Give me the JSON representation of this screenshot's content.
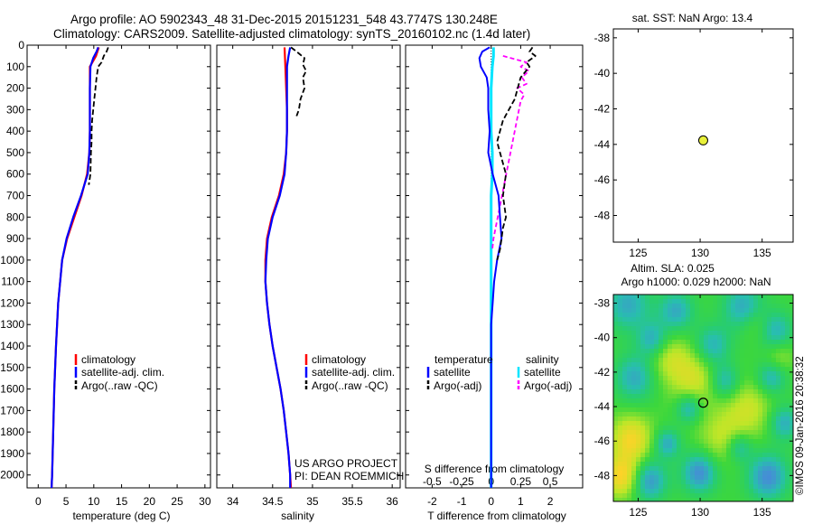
{
  "title_line1": "Argo profile: AO 5902343_48 31-Dec-2015 20151231_548 43.7747S 130.248E",
  "title_line2": "Climatology: CARS2009. Satellite-adjusted climatology: synTS_20160102.nc (1.4d later)",
  "colors": {
    "climatology": "#ff0000",
    "satellite": "#0000ff",
    "argo": "#000000",
    "salinity_satellite": "#00e5ff",
    "salinity_argo": "#ff00ff",
    "marker": "#e8f03a"
  },
  "chart_data": [
    {
      "id": "temperature",
      "type": "line",
      "xlabel": "temperature (deg C)",
      "ylabel": "",
      "xlim": [
        -2,
        31
      ],
      "ylim": [
        2060,
        0
      ],
      "xticks": [
        0,
        5,
        10,
        15,
        20,
        25,
        30
      ],
      "yticks": [
        0,
        100,
        200,
        300,
        400,
        500,
        600,
        700,
        800,
        900,
        1000,
        1100,
        1200,
        1300,
        1400,
        1500,
        1600,
        1700,
        1800,
        1900,
        2000
      ],
      "legend": [
        "climatology",
        "satellite-adj. clim.",
        "Argo(..raw -QC)"
      ],
      "series": [
        {
          "name": "climatology",
          "depth": [
            10,
            50,
            100,
            200,
            300,
            400,
            500,
            600,
            700,
            800,
            900,
            1000,
            1200,
            1400,
            1600,
            1800,
            2000,
            2060
          ],
          "values": [
            10.9,
            10.4,
            9.3,
            9.3,
            9.3,
            9.3,
            9.2,
            8.8,
            7.8,
            6.5,
            5.2,
            4.3,
            3.6,
            3.2,
            2.9,
            2.7,
            2.5,
            2.4
          ]
        },
        {
          "name": "satellite-adj. clim.",
          "depth": [
            10,
            30,
            60,
            100,
            200,
            300,
            400,
            500,
            600,
            700,
            800,
            900,
            1000,
            1200,
            1400,
            1600,
            1800,
            2000,
            2060
          ],
          "values": [
            10.8,
            10.5,
            9.9,
            9.4,
            9.3,
            9.3,
            9.3,
            9.2,
            8.9,
            7.7,
            6.3,
            5.1,
            4.3,
            3.6,
            3.2,
            2.9,
            2.7,
            2.5,
            2.4
          ]
        },
        {
          "name": "Argo(..raw -QC)",
          "depth": [
            10,
            30,
            50,
            80,
            100,
            150,
            200,
            250,
            300,
            350,
            400,
            450,
            500,
            600,
            650
          ],
          "values": [
            12.6,
            12.3,
            11.8,
            11.4,
            10.8,
            10.5,
            10.3,
            10.1,
            9.9,
            9.7,
            9.6,
            9.6,
            9.5,
            9.4,
            9.1
          ]
        }
      ]
    },
    {
      "id": "salinity",
      "type": "line",
      "xlabel": "salinity",
      "ylabel": "",
      "xlim": [
        33.8,
        36.1
      ],
      "ylim": [
        2060,
        0
      ],
      "xticks": [
        34,
        34.5,
        35,
        35.5,
        36
      ],
      "legend": [
        "climatology",
        "satellite-adj. clim.",
        "Argo(..raw -QC)"
      ],
      "note_line1": "US ARGO PROJECT",
      "note_line2": "PI: DEAN ROEMMICH",
      "series": [
        {
          "name": "climatology",
          "depth": [
            10,
            100,
            200,
            300,
            400,
            500,
            600,
            700,
            800,
            900,
            1000,
            1100,
            1200,
            1300,
            1400,
            1500,
            1600,
            1700,
            1800,
            1900,
            2000,
            2060
          ],
          "values": [
            34.65,
            34.66,
            34.67,
            34.68,
            34.68,
            34.67,
            34.64,
            34.58,
            34.49,
            34.43,
            34.41,
            34.41,
            34.43,
            34.46,
            34.5,
            34.55,
            34.6,
            34.64,
            34.67,
            34.7,
            34.72,
            34.73
          ]
        },
        {
          "name": "satellite-adj. clim.",
          "depth": [
            10,
            50,
            100,
            200,
            300,
            400,
            500,
            600,
            700,
            800,
            900,
            1000,
            1100,
            1200,
            1300,
            1400,
            1500,
            1600,
            1700,
            1800,
            1900,
            2000,
            2060
          ],
          "values": [
            34.72,
            34.7,
            34.68,
            34.68,
            34.68,
            34.68,
            34.67,
            34.65,
            34.59,
            34.5,
            34.44,
            34.42,
            34.41,
            34.43,
            34.46,
            34.5,
            34.55,
            34.6,
            34.64,
            34.67,
            34.7,
            34.72,
            34.72
          ]
        },
        {
          "name": "Argo(..raw -QC)",
          "depth": [
            10,
            30,
            60,
            90,
            120,
            150,
            200,
            250,
            300,
            330
          ],
          "values": [
            34.73,
            34.8,
            34.9,
            34.88,
            34.92,
            34.88,
            34.9,
            34.85,
            34.83,
            34.8
          ]
        }
      ]
    },
    {
      "id": "differences",
      "type": "line",
      "xlabel": "T difference from climatology",
      "xlabel_top": "S difference from climatology",
      "ylabel": "",
      "xlim": [
        -2.9,
        3.1
      ],
      "ylim": [
        2060,
        0
      ],
      "xticks_bottom": [
        -2,
        -1,
        0,
        1,
        2
      ],
      "xticks_top": [
        "-0.5",
        "-0.25",
        "0",
        "0.25",
        "0.5"
      ],
      "legend_temperature_heading": "temperature",
      "legend_salinity_heading": "salinity",
      "legend": [
        "satellite",
        "Argo(-adj)",
        "satellite",
        "Argo(-adj)"
      ],
      "series": [
        {
          "name": "temperature satellite",
          "depth": [
            10,
            30,
            60,
            100,
            150,
            200,
            300,
            400,
            500,
            600,
            700,
            800,
            900,
            1000,
            1100,
            1200,
            1300,
            1400,
            1500,
            1600,
            1700,
            1800,
            1900,
            2000,
            2060
          ],
          "values": [
            -0.05,
            -0.3,
            -0.4,
            -0.35,
            -0.15,
            -0.1,
            -0.1,
            -0.05,
            -0.1,
            0.05,
            0.25,
            0.3,
            0.35,
            0.2,
            0.1,
            0.05,
            0.0,
            0.0,
            0.0,
            0.0,
            0.0,
            0.0,
            0.0,
            0.0,
            0.0
          ]
        },
        {
          "name": "temperature Argo(-adj)",
          "depth": [
            10,
            30,
            50,
            80,
            100,
            150,
            200,
            250,
            300,
            350,
            400,
            450,
            500,
            600,
            700,
            800,
            850,
            900,
            950,
            1000
          ],
          "values": [
            1.4,
            1.3,
            1.5,
            1.2,
            1.3,
            1.0,
            0.9,
            0.8,
            0.6,
            0.4,
            0.3,
            0.2,
            0.3,
            0.5,
            0.4,
            0.5,
            0.4,
            0.35,
            0.3,
            0.2
          ]
        },
        {
          "name": "salinity satellite",
          "depth": [
            10,
            50,
            100,
            200,
            300,
            400,
            500,
            600,
            700,
            800,
            900,
            1000,
            1200,
            1400,
            1600,
            1800,
            2000,
            2060
          ],
          "values": [
            0.02,
            0.02,
            0.01,
            0.0,
            0.0,
            0.0,
            0.01,
            0.01,
            0.0,
            0.0,
            0.0,
            0.0,
            0.0,
            0.0,
            0.0,
            0.0,
            0.0,
            0.0
          ]
        },
        {
          "name": "salinity Argo(-adj)",
          "depth": [
            50,
            80,
            100,
            120,
            150,
            180,
            200,
            230,
            260,
            900,
            950
          ],
          "values": [
            0.1,
            0.3,
            0.25,
            0.32,
            0.26,
            0.3,
            0.22,
            0.28,
            0.25,
            0.02,
            0.01
          ]
        }
      ]
    },
    {
      "id": "sst_map",
      "type": "scatter",
      "title": "sat. SST: NaN Argo: 13.4",
      "xlim": [
        123,
        137.5
      ],
      "ylim": [
        -49.5,
        -37.5
      ],
      "xticks": [
        125,
        130,
        135
      ],
      "yticks": [
        -38,
        -40,
        -42,
        -44,
        -46,
        -48
      ],
      "points": [
        {
          "x": 130.248,
          "y": -43.7747
        }
      ]
    },
    {
      "id": "sla_map",
      "type": "heatmap",
      "title_line1": "Altim. SLA: 0.025",
      "title_line2": "Argo h1000: 0.029 h2000: NaN",
      "xlim": [
        123,
        137.5
      ],
      "ylim": [
        -49.5,
        -37.5
      ],
      "xticks": [
        125,
        130,
        135
      ],
      "yticks": [
        -38,
        -40,
        -42,
        -44,
        -46,
        -48
      ],
      "points": [
        {
          "x": 130.248,
          "y": -43.7747
        }
      ]
    }
  ],
  "credit": "©IMOS 09-Jan-2016 20:38:32"
}
